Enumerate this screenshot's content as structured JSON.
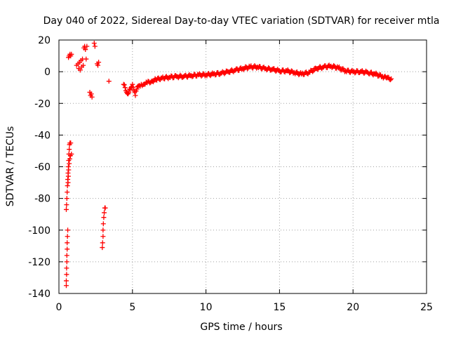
{
  "chart_data": {
    "type": "scatter",
    "title": "Day 040 of 2022, Sidereal Day-to-day VTEC variation (SDTVAR) for receiver mtla",
    "xlabel": "GPS time / hours",
    "ylabel": "SDTVAR / TECUs",
    "xlim": [
      0,
      25
    ],
    "ylim": [
      -140,
      20
    ],
    "x_ticks": [
      0,
      5,
      10,
      15,
      20,
      25
    ],
    "y_ticks": [
      -140,
      -120,
      -100,
      -80,
      -60,
      -40,
      -20,
      0,
      20
    ],
    "grid": true,
    "marker": "+",
    "series": [
      {
        "name": "SDTVAR",
        "color": "#ff0000",
        "points": [
          [
            0.5,
            -135
          ],
          [
            0.5,
            -132
          ],
          [
            0.52,
            -128
          ],
          [
            0.52,
            -124
          ],
          [
            0.54,
            -120
          ],
          [
            0.54,
            -116
          ],
          [
            0.56,
            -112
          ],
          [
            0.56,
            -108
          ],
          [
            0.58,
            -104
          ],
          [
            0.6,
            -100
          ],
          [
            0.5,
            -87
          ],
          [
            0.52,
            -84
          ],
          [
            0.54,
            -80
          ],
          [
            0.56,
            -76
          ],
          [
            0.58,
            -72
          ],
          [
            0.6,
            -68
          ],
          [
            0.62,
            -64
          ],
          [
            0.64,
            -60
          ],
          [
            0.66,
            -56
          ],
          [
            0.68,
            -52
          ],
          [
            0.7,
            -49
          ],
          [
            0.72,
            -46
          ],
          [
            0.75,
            -45
          ],
          [
            0.8,
            -45
          ],
          [
            0.85,
            -52
          ],
          [
            0.62,
            -70
          ],
          [
            0.64,
            -66
          ],
          [
            0.66,
            -62
          ],
          [
            0.7,
            -58
          ],
          [
            0.74,
            -55
          ],
          [
            0.78,
            -53
          ],
          [
            0.65,
            9
          ],
          [
            0.7,
            10
          ],
          [
            0.75,
            11
          ],
          [
            0.8,
            10
          ],
          [
            0.85,
            11
          ],
          [
            1.2,
            4
          ],
          [
            1.3,
            5
          ],
          [
            1.35,
            2
          ],
          [
            1.4,
            6
          ],
          [
            1.45,
            1
          ],
          [
            1.5,
            7
          ],
          [
            1.55,
            3
          ],
          [
            1.6,
            8
          ],
          [
            1.65,
            4
          ],
          [
            1.7,
            15
          ],
          [
            1.75,
            16
          ],
          [
            1.8,
            14
          ],
          [
            1.85,
            8
          ],
          [
            1.9,
            16
          ],
          [
            2.1,
            -13
          ],
          [
            2.15,
            -15
          ],
          [
            2.2,
            -14
          ],
          [
            2.25,
            -16
          ],
          [
            2.4,
            18
          ],
          [
            2.45,
            16
          ],
          [
            2.6,
            5
          ],
          [
            2.65,
            4
          ],
          [
            2.7,
            6
          ],
          [
            2.95,
            -111
          ],
          [
            2.97,
            -108
          ],
          [
            3.0,
            -104
          ],
          [
            3.0,
            -100
          ],
          [
            3.02,
            -96
          ],
          [
            3.05,
            -92
          ],
          [
            3.08,
            -89
          ],
          [
            3.12,
            -86
          ],
          [
            3.15,
            -86
          ],
          [
            3.4,
            -6
          ],
          [
            4.4,
            -8
          ],
          [
            4.5,
            -10
          ],
          [
            4.55,
            -12
          ],
          [
            4.6,
            -13
          ],
          [
            4.7,
            -14
          ],
          [
            4.8,
            -11
          ],
          [
            4.9,
            -10
          ],
          [
            5.0,
            -8
          ],
          [
            5.1,
            -12
          ],
          [
            5.2,
            -15
          ],
          [
            5.3,
            -11
          ],
          [
            5.4,
            -9
          ],
          [
            5.6,
            -8
          ],
          [
            5.8,
            -8
          ],
          [
            6.0,
            -7
          ],
          [
            6.3,
            -6
          ],
          [
            6.6,
            -5
          ],
          [
            7.0,
            -4
          ],
          [
            7.5,
            -3.5
          ],
          [
            8.0,
            -3
          ],
          [
            8.5,
            -3
          ],
          [
            9.0,
            -2.5
          ],
          [
            9.5,
            -2
          ],
          [
            10.0,
            -2
          ],
          [
            10.5,
            -1.5
          ],
          [
            11.0,
            -1
          ],
          [
            11.5,
            0
          ],
          [
            12.0,
            1
          ],
          [
            12.5,
            2
          ],
          [
            13.0,
            3
          ],
          [
            13.5,
            3
          ],
          [
            14.0,
            2
          ],
          [
            14.5,
            1.5
          ],
          [
            15.0,
            0.5
          ],
          [
            15.5,
            0.5
          ],
          [
            16.0,
            -0.5
          ],
          [
            16.5,
            -1.5
          ],
          [
            17.0,
            -0.5
          ],
          [
            17.5,
            2
          ],
          [
            18.0,
            3
          ],
          [
            18.5,
            3.5
          ],
          [
            19.0,
            2.5
          ],
          [
            19.5,
            0.5
          ],
          [
            20.0,
            0
          ],
          [
            20.5,
            0
          ],
          [
            21.0,
            -0.5
          ],
          [
            21.5,
            -1.5
          ],
          [
            22.0,
            -3
          ],
          [
            22.3,
            -4
          ],
          [
            22.6,
            -4.5
          ]
        ]
      }
    ]
  }
}
